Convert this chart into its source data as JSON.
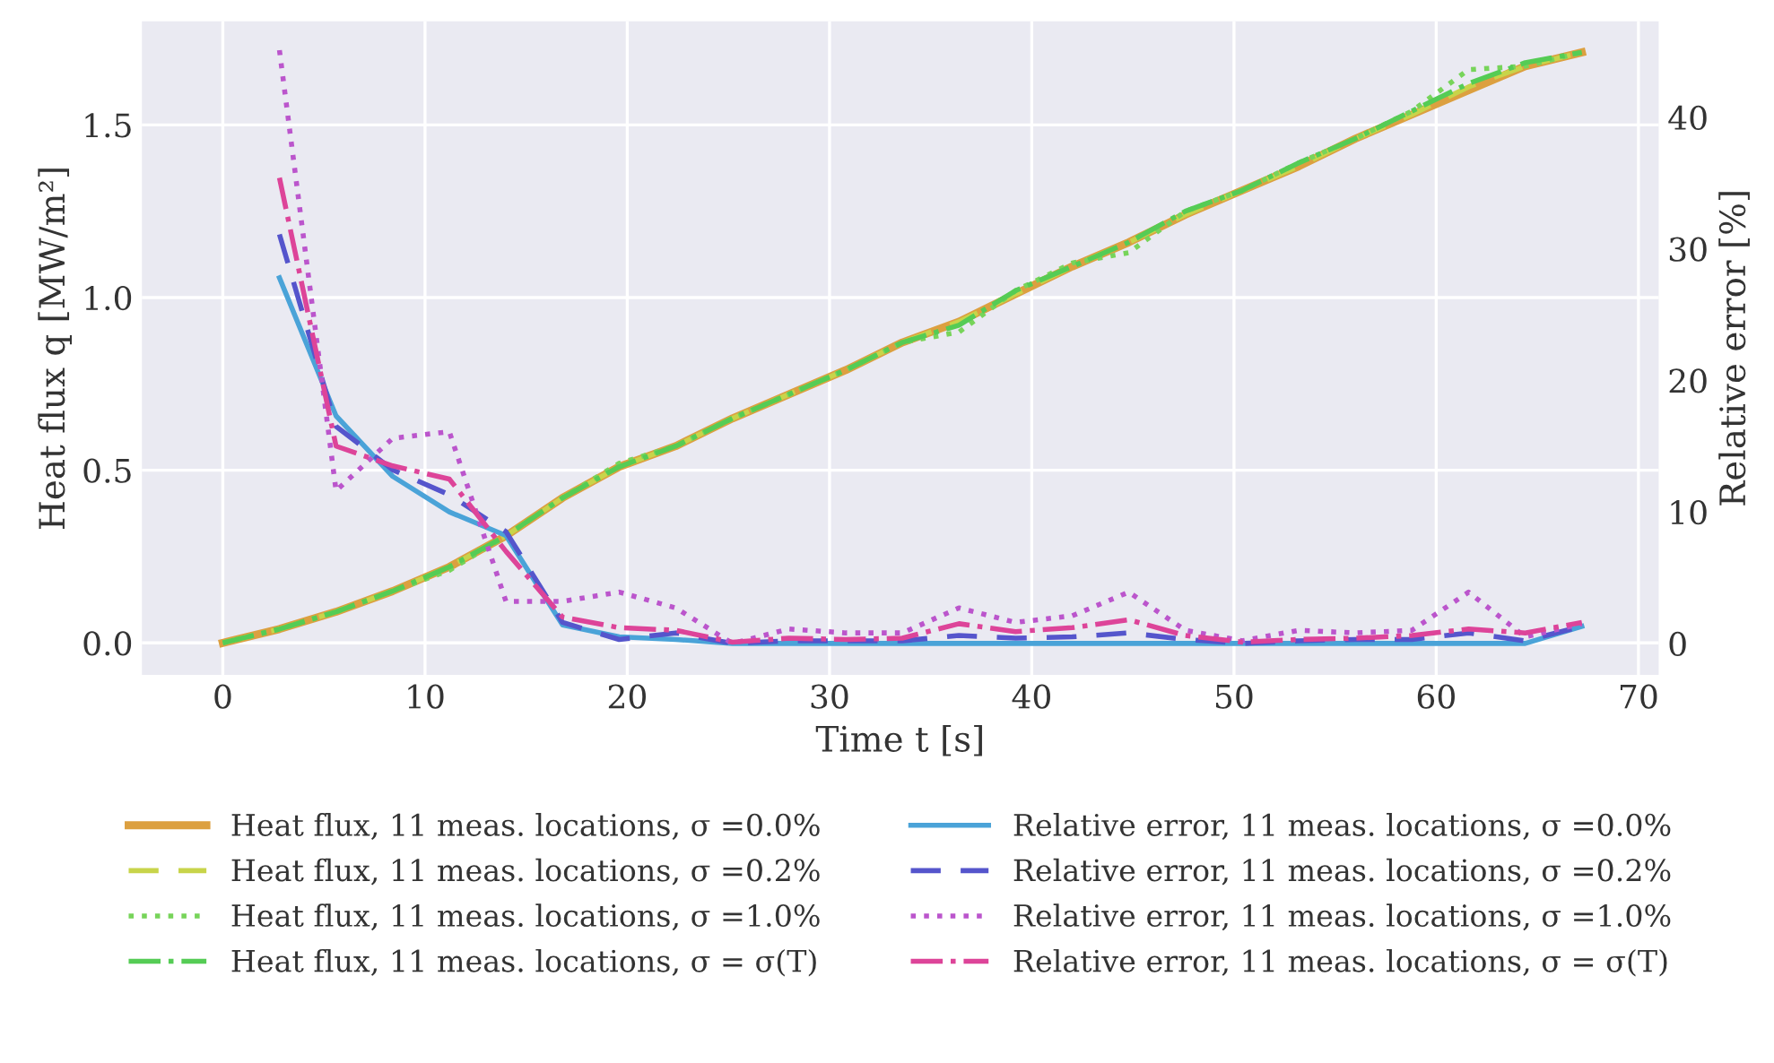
{
  "chart_data": {
    "type": "line",
    "xlabel": "Time t [s]",
    "ylabel": "Heat flux q [MW/m²]",
    "y2label": "Relative error [%]",
    "xlim": [
      -4,
      71
    ],
    "xticks": [
      0,
      10,
      20,
      30,
      40,
      50,
      60,
      70
    ],
    "ylim": [
      -0.093,
      1.8
    ],
    "yticks": [
      {
        "value": 0,
        "label": "0.0"
      },
      {
        "value": 0.5,
        "label": "0.5"
      },
      {
        "value": 1.0,
        "label": "1.0"
      },
      {
        "value": 1.5,
        "label": "1.5"
      }
    ],
    "y2lim": [
      -2.4,
      47.3
    ],
    "y2ticks": [
      0,
      10,
      20,
      30,
      40
    ],
    "grid": true,
    "legend": "bottom",
    "marker": "none",
    "x": [
      0,
      2.8,
      5.6,
      8.4,
      11.2,
      14,
      16.8,
      19.6,
      22.4,
      25.2,
      28,
      30.8,
      33.6,
      36.4,
      39.2,
      42,
      44.8,
      47.6,
      50.4,
      53.2,
      56,
      58.8,
      61.6,
      64.4,
      67.2
    ],
    "series": [
      {
        "name": "Heat flux, 11 meas. locations, σ =0.0%",
        "color": "#dca040",
        "line_style": "solid",
        "values": [
          0,
          0.04,
          0.09,
          0.15,
          0.22,
          0.31,
          0.42,
          0.51,
          0.57,
          0.65,
          0.72,
          0.79,
          0.87,
          0.93,
          1.01,
          1.09,
          1.16,
          1.24,
          1.31,
          1.38,
          1.46,
          1.53,
          1.6,
          1.67,
          1.71
        ]
      },
      {
        "name": "Heat flux, 11 meas. locations, σ =0.2%",
        "color": "#c8d44a",
        "line_style": "dashed",
        "values": [
          0,
          0.04,
          0.09,
          0.15,
          0.22,
          0.31,
          0.42,
          0.51,
          0.57,
          0.65,
          0.72,
          0.79,
          0.87,
          0.93,
          1.01,
          1.09,
          1.16,
          1.24,
          1.31,
          1.38,
          1.46,
          1.53,
          1.61,
          1.67,
          1.71
        ]
      },
      {
        "name": "Heat flux, 11 meas. locations, σ =1.0%",
        "color": "#77d45a",
        "line_style": "dotted",
        "values": [
          0,
          0.04,
          0.09,
          0.15,
          0.21,
          0.31,
          0.42,
          0.52,
          0.57,
          0.65,
          0.72,
          0.79,
          0.87,
          0.9,
          1.02,
          1.1,
          1.13,
          1.25,
          1.31,
          1.39,
          1.46,
          1.54,
          1.66,
          1.67,
          1.71
        ]
      },
      {
        "name": "Heat flux, 11 meas. locations, σ = σ(T)",
        "color": "#55cc55",
        "line_style": "dashdot",
        "values": [
          0,
          0.04,
          0.09,
          0.15,
          0.22,
          0.31,
          0.42,
          0.51,
          0.57,
          0.65,
          0.72,
          0.79,
          0.87,
          0.92,
          1.02,
          1.09,
          1.16,
          1.25,
          1.31,
          1.39,
          1.46,
          1.54,
          1.62,
          1.68,
          1.71
        ]
      },
      {
        "name": "Relative error, 11 meas. locations, σ =0.0%",
        "color": "#4aa3d8",
        "line_style": "solid",
        "axis": "y2",
        "values": [
          null,
          27.8,
          17.3,
          12.7,
          10.0,
          8.2,
          1.4,
          0.5,
          0.3,
          0,
          0,
          0,
          0,
          0,
          0,
          0,
          0,
          0,
          0,
          0,
          0,
          0,
          0,
          0,
          1.3
        ]
      },
      {
        "name": "Relative error, 11 meas. locations, σ =0.2%",
        "color": "#5555cc",
        "line_style": "dashed",
        "axis": "y2",
        "values": [
          null,
          31.1,
          16.5,
          13.2,
          11.3,
          8.5,
          1.6,
          0.3,
          0.8,
          0,
          0.2,
          0.2,
          0.2,
          0.6,
          0.4,
          0.5,
          0.8,
          0.3,
          0,
          0.2,
          0.3,
          0.3,
          0.8,
          0.2,
          1.3
        ]
      },
      {
        "name": "Relative error, 11 meas. locations, σ =1.0%",
        "color": "#bb55cc",
        "line_style": "dotted",
        "axis": "y2",
        "values": [
          null,
          45.1,
          11.6,
          15.6,
          16.1,
          3.2,
          3.2,
          3.9,
          2.7,
          0,
          1.1,
          0.8,
          0.8,
          2.7,
          1.6,
          2.1,
          3.9,
          1.0,
          0.2,
          1.0,
          0.8,
          1.0,
          3.9,
          0.5,
          1.5
        ]
      },
      {
        "name": "Relative error, 11 meas. locations, σ = σ(T)",
        "color": "#dd4499",
        "line_style": "dashdot",
        "axis": "y2",
        "values": [
          null,
          35.4,
          15.0,
          13.5,
          12.5,
          7.0,
          2.0,
          1.2,
          1.0,
          0.1,
          0.4,
          0.3,
          0.4,
          1.5,
          0.9,
          1.2,
          1.8,
          0.6,
          0.1,
          0.3,
          0.4,
          0.6,
          1.1,
          0.8,
          1.6
        ]
      }
    ]
  }
}
